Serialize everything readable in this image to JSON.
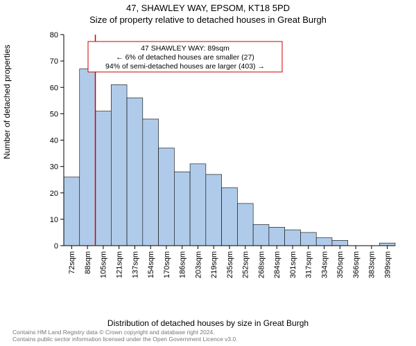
{
  "header": {
    "address": "47, SHAWLEY WAY, EPSOM, KT18 5PD",
    "subtitle": "Size of property relative to detached houses in Great Burgh"
  },
  "y_axis": {
    "label": "Number of detached properties",
    "min": 0,
    "max": 80,
    "tick_step": 10
  },
  "x_axis": {
    "label": "Distribution of detached houses by size in Great Burgh",
    "categories": [
      "72sqm",
      "88sqm",
      "105sqm",
      "121sqm",
      "137sqm",
      "154sqm",
      "170sqm",
      "186sqm",
      "203sqm",
      "219sqm",
      "235sqm",
      "252sqm",
      "268sqm",
      "284sqm",
      "301sqm",
      "317sqm",
      "334sqm",
      "350sqm",
      "366sqm",
      "383sqm",
      "399sqm"
    ]
  },
  "bars": {
    "values": [
      26,
      67,
      51,
      61,
      56,
      48,
      37,
      28,
      31,
      27,
      22,
      16,
      8,
      7,
      6,
      5,
      3,
      2,
      0,
      0,
      1
    ],
    "fill_color": "#b0cbea",
    "stroke_color": "#000000",
    "stroke_width": 0.6,
    "bar_gap": 0
  },
  "marker": {
    "bar_index": 1,
    "line_color": "#cc0000",
    "line_width": 1.5
  },
  "callout": {
    "line1": "47 SHAWLEY WAY: 89sqm",
    "line2": "← 6% of detached houses are smaller (27)",
    "line3": "94% of semi-detached houses are larger (403) →",
    "border_color": "#cc0000",
    "background": "#ffffff",
    "border_width": 1
  },
  "plot": {
    "background": "#ffffff",
    "spine_color": "#000000",
    "tick_color": "#000000"
  },
  "footer": {
    "line1": "Contains HM Land Registry data © Crown copyright and database right 2024.",
    "line2": "Contains public sector information licensed under the Open Government Licence v3.0."
  }
}
